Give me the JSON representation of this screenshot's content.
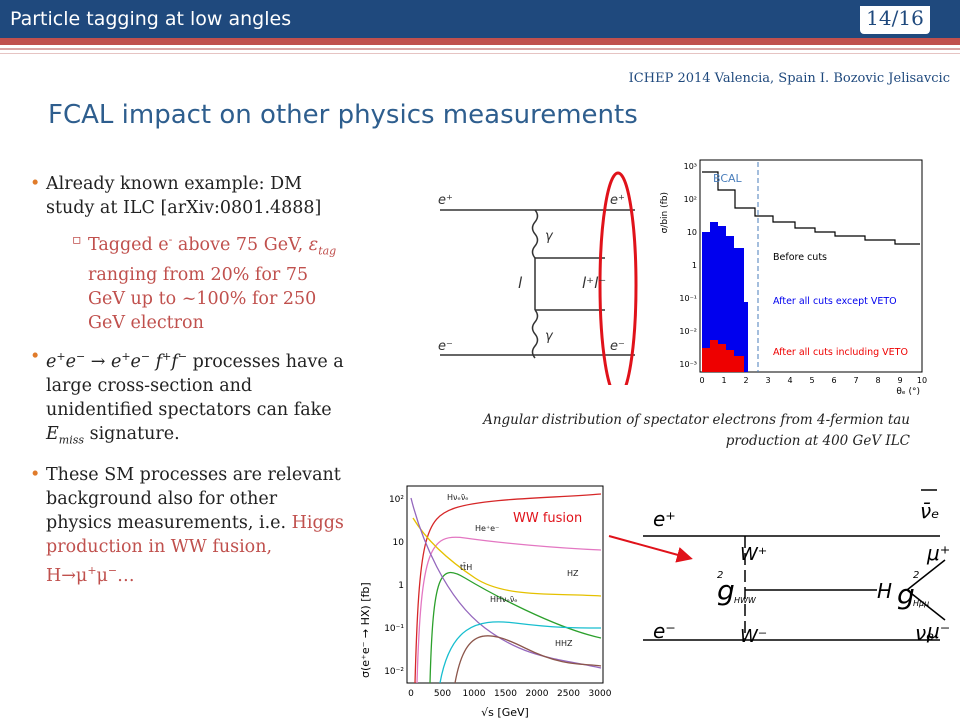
{
  "header": {
    "title": "Particle tagging at low angles",
    "page": "14/16",
    "conference": "ICHEP 2014 Valencia, Spain I. Bozovic Jelisavcic"
  },
  "slide_title": "FCAL impact on other physics measurements",
  "bullets": [
    {
      "parts": [
        "Already known example: DM study at ILC [arXiv:0801.4888]"
      ],
      "sub": [
        "Tagged e",
        "-",
        " above 75 GeV, ",
        "ε",
        "tag",
        " ranging from 20% for 75 GeV up to ~100% for 250 GeV electron"
      ]
    },
    {
      "parts": [
        "e",
        "+",
        "e",
        "−",
        " → e",
        "+",
        "e",
        "−",
        " f",
        "+",
        "f",
        "−",
        " processes have a large cross-section and unidentified spectators can fake ",
        "E",
        "miss",
        " signature."
      ]
    },
    {
      "parts": [
        "These SM processes are relevant background also for other physics measurements, i.e. ",
        "Higgs production in WW fusion, H→μ",
        "+",
        "μ",
        "−",
        "…"
      ]
    }
  ],
  "figure1": {
    "diagram": {
      "top_left": "e⁺",
      "top_right": "e⁺",
      "bottom_left": "e⁻",
      "bottom_right": "e⁻",
      "photon_top": "γ",
      "photon_bottom": "γ",
      "lepton": "l",
      "pair": "l⁺l⁻"
    },
    "plot": {
      "ylabel": "σ/bin (fb)",
      "xlabel": "θₑ (°)",
      "bcal": "BCAL",
      "legend": [
        "Before cuts",
        "After all cuts except VETO",
        "After all cuts including VETO"
      ],
      "xticks": [
        "0",
        "1",
        "2",
        "3",
        "4",
        "5",
        "6",
        "7",
        "8",
        "9",
        "10"
      ],
      "yticks": [
        "10³",
        "10²",
        "10",
        "1",
        "10⁻¹",
        "10⁻²",
        "10⁻³"
      ]
    },
    "caption": "Angular distribution of spectator electrons from 4-fermion tau production at 400 GeV ILC"
  },
  "figure2": {
    "plot": {
      "ylabel": "σ(e⁺e⁻ → HX) [fb]",
      "xlabel": "√s [GeV]",
      "xticks": [
        "0",
        "500",
        "1000",
        "1500",
        "2000",
        "2500",
        "3000"
      ],
      "yticks": [
        "10²",
        "10",
        "1",
        "10⁻¹",
        "10⁻²"
      ],
      "curves": [
        "Hνₑν̄ₑ",
        "He⁺e⁻",
        "tt̄H",
        "HZ",
        "HHνₑν̄ₑ",
        "HHZ"
      ],
      "highlight": "WW fusion"
    },
    "diagram": {
      "e_plus": "e⁺",
      "nubar": "ν̄ₑ",
      "w_plus": "W⁺",
      "g_hww": [
        "g",
        "2",
        "HWW"
      ],
      "h": "H",
      "mu_plus": "μ⁺",
      "g_hmm": [
        "g",
        "2",
        "Hμμ"
      ],
      "mu_minus": "μ⁻",
      "e_minus": "e⁻",
      "w_minus": "W⁻",
      "nu": "νₑ"
    }
  }
}
